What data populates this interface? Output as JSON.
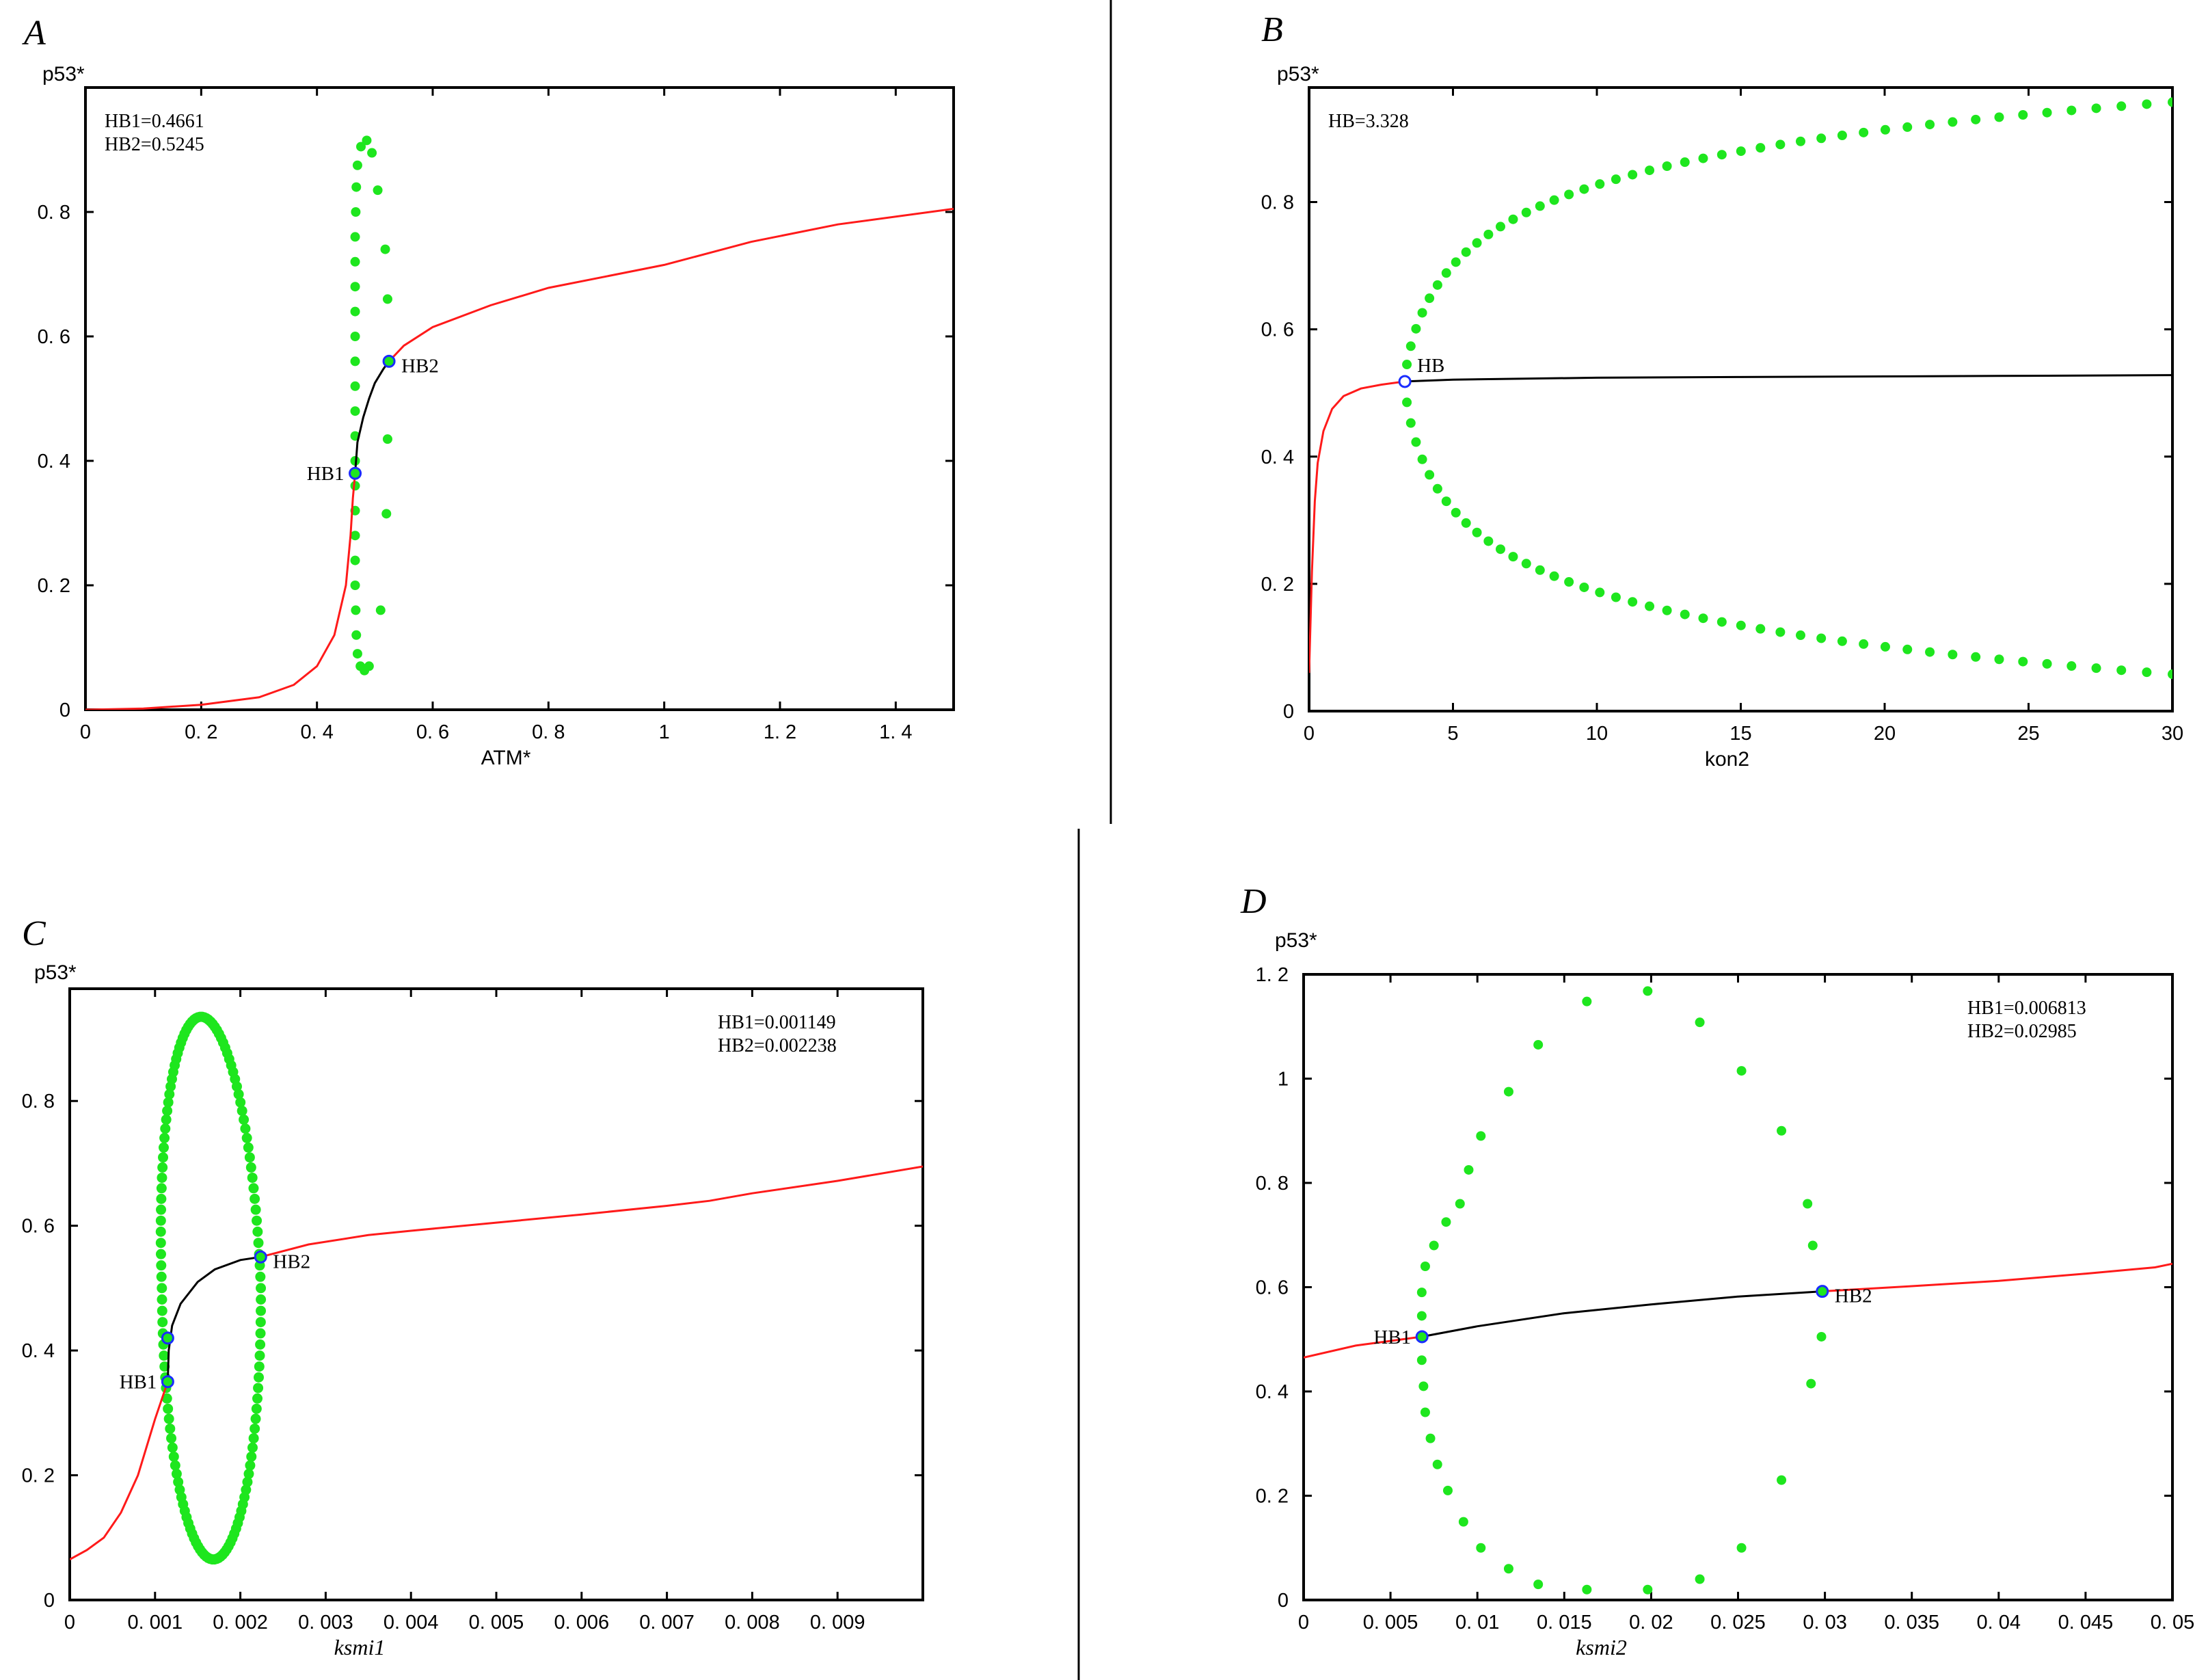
{
  "colors": {
    "stable": "#ff1a1a",
    "unstable": "#000000",
    "limit_cycle": "#1ee61e",
    "hopf_marker": "#1a2cff",
    "frame": "#000000"
  },
  "chart_data": [
    {
      "id": "A",
      "type": "line",
      "panel_label": "A",
      "ylabel": "p53*",
      "xlabel": "ATM*",
      "xlabel_italic": false,
      "xlim": [
        0,
        1.5
      ],
      "ylim": [
        0,
        1.0
      ],
      "xticks": [
        0,
        0.2,
        0.4,
        0.6,
        0.8,
        1,
        1.2,
        1.4
      ],
      "xtick_labels": [
        "0",
        "0. 2",
        "0. 4",
        "0. 6",
        "0. 8",
        "1",
        "1. 2",
        "1. 4"
      ],
      "yticks": [
        0,
        0.2,
        0.4,
        0.6,
        0.8
      ],
      "ytick_labels": [
        "0",
        "0. 2",
        "0. 4",
        "0. 6",
        "0. 8"
      ],
      "info_lines": [
        "HB1=0.4661",
        "HB2=0.5245"
      ],
      "info_pos": "top-left",
      "stable_branches": [
        [
          [
            0,
            0
          ],
          [
            0.1,
            0.002
          ],
          [
            0.2,
            0.008
          ],
          [
            0.3,
            0.02
          ],
          [
            0.36,
            0.04
          ],
          [
            0.4,
            0.07
          ],
          [
            0.43,
            0.12
          ],
          [
            0.45,
            0.2
          ],
          [
            0.458,
            0.28
          ],
          [
            0.462,
            0.34
          ],
          [
            0.466,
            0.38
          ]
        ],
        [
          [
            0.5245,
            0.56
          ],
          [
            0.55,
            0.585
          ],
          [
            0.6,
            0.615
          ],
          [
            0.7,
            0.65
          ],
          [
            0.8,
            0.678
          ],
          [
            1.0,
            0.715
          ],
          [
            1.15,
            0.752
          ],
          [
            1.3,
            0.78
          ],
          [
            1.5,
            0.805
          ]
        ]
      ],
      "unstable_branch": [
        [
          0.466,
          0.38
        ],
        [
          0.47,
          0.43
        ],
        [
          0.48,
          0.47
        ],
        [
          0.49,
          0.5
        ],
        [
          0.5,
          0.525
        ],
        [
          0.515,
          0.548
        ],
        [
          0.5245,
          0.56
        ]
      ],
      "cycle_points": [
        [
          0.476,
          0.905
        ],
        [
          0.486,
          0.915
        ],
        [
          0.495,
          0.895
        ],
        [
          0.505,
          0.835
        ],
        [
          0.47,
          0.875
        ],
        [
          0.468,
          0.84
        ],
        [
          0.467,
          0.8
        ],
        [
          0.466,
          0.76
        ],
        [
          0.466,
          0.72
        ],
        [
          0.466,
          0.68
        ],
        [
          0.466,
          0.64
        ],
        [
          0.466,
          0.6
        ],
        [
          0.466,
          0.56
        ],
        [
          0.466,
          0.52
        ],
        [
          0.466,
          0.48
        ],
        [
          0.466,
          0.44
        ],
        [
          0.466,
          0.4
        ],
        [
          0.466,
          0.36
        ],
        [
          0.466,
          0.32
        ],
        [
          0.466,
          0.28
        ],
        [
          0.466,
          0.24
        ],
        [
          0.466,
          0.2
        ],
        [
          0.467,
          0.16
        ],
        [
          0.468,
          0.12
        ],
        [
          0.47,
          0.09
        ],
        [
          0.475,
          0.07
        ],
        [
          0.482,
          0.063
        ],
        [
          0.49,
          0.07
        ],
        [
          0.51,
          0.16
        ],
        [
          0.52,
          0.315
        ],
        [
          0.522,
          0.435
        ],
        [
          0.522,
          0.66
        ],
        [
          0.518,
          0.74
        ]
      ],
      "hopf_points": [
        {
          "x": 0.466,
          "y": 0.38,
          "label": "HB1",
          "label_side": "left"
        },
        {
          "x": 0.5245,
          "y": 0.56,
          "label": "HB2",
          "label_side": "right"
        }
      ]
    },
    {
      "id": "B",
      "type": "line",
      "panel_label": "B",
      "ylabel": "p53*",
      "xlabel": "kon2",
      "xlabel_italic": false,
      "xlim": [
        0,
        30
      ],
      "ylim": [
        0,
        0.98
      ],
      "xticks": [
        0,
        5,
        10,
        15,
        20,
        25,
        30
      ],
      "xtick_labels": [
        "0",
        "5",
        "10",
        "15",
        "20",
        "25",
        "30"
      ],
      "yticks": [
        0,
        0.2,
        0.4,
        0.6,
        0.8
      ],
      "ytick_labels": [
        "0",
        "0. 2",
        "0. 4",
        "0. 6",
        "0. 8"
      ],
      "info_lines": [
        "HB=3.328"
      ],
      "info_pos": "top-left",
      "stable_branches": [
        [
          [
            0,
            0.06
          ],
          [
            0.1,
            0.22
          ],
          [
            0.2,
            0.33
          ],
          [
            0.3,
            0.39
          ],
          [
            0.5,
            0.44
          ],
          [
            0.8,
            0.475
          ],
          [
            1.2,
            0.495
          ],
          [
            1.8,
            0.507
          ],
          [
            2.5,
            0.513
          ],
          [
            3.328,
            0.518
          ]
        ]
      ],
      "unstable_branch": [
        [
          3.328,
          0.518
        ],
        [
          5,
          0.521
        ],
        [
          10,
          0.524
        ],
        [
          15,
          0.525
        ],
        [
          20,
          0.526
        ],
        [
          25,
          0.527
        ],
        [
          30,
          0.528
        ]
      ],
      "hopf_points": [
        {
          "x": 3.328,
          "y": 0.518,
          "label": "HB",
          "label_side": "right"
        }
      ]
    },
    {
      "id": "C",
      "type": "line",
      "panel_label": "C",
      "ylabel": "p53*",
      "xlabel": "ksmi1",
      "xlabel_italic": true,
      "xlim": [
        0,
        0.01
      ],
      "ylim": [
        0,
        0.98
      ],
      "xticks": [
        0,
        0.001,
        0.002,
        0.003,
        0.004,
        0.005,
        0.006,
        0.007,
        0.008,
        0.009
      ],
      "xtick_labels": [
        "0",
        "0. 001",
        "0. 002",
        "0. 003",
        "0. 004",
        "0. 005",
        "0. 006",
        "0. 007",
        "0. 008",
        "0. 009"
      ],
      "yticks": [
        0,
        0.2,
        0.4,
        0.6,
        0.8
      ],
      "ytick_labels": [
        "0",
        "0. 2",
        "0. 4",
        "0. 6",
        "0. 8"
      ],
      "info_lines": [
        "HB1=0.001149",
        "HB2=0.002238"
      ],
      "info_pos": "top-right",
      "stable_branches": [
        [
          [
            0,
            0.065
          ],
          [
            0.0002,
            0.08
          ],
          [
            0.0004,
            0.1
          ],
          [
            0.0006,
            0.14
          ],
          [
            0.0008,
            0.2
          ],
          [
            0.001,
            0.29
          ],
          [
            0.001149,
            0.35
          ]
        ],
        [
          [
            0.002238,
            0.55
          ],
          [
            0.0028,
            0.57
          ],
          [
            0.0035,
            0.585
          ],
          [
            0.004,
            0.592
          ],
          [
            0.005,
            0.605
          ],
          [
            0.006,
            0.618
          ],
          [
            0.007,
            0.632
          ],
          [
            0.0075,
            0.64
          ],
          [
            0.008,
            0.652
          ],
          [
            0.009,
            0.672
          ],
          [
            0.01,
            0.695
          ]
        ]
      ],
      "unstable_branch": [
        [
          0.001149,
          0.35
        ],
        [
          0.00116,
          0.4
        ],
        [
          0.0012,
          0.44
        ],
        [
          0.0013,
          0.475
        ],
        [
          0.0015,
          0.51
        ],
        [
          0.0017,
          0.53
        ],
        [
          0.002,
          0.545
        ],
        [
          0.002238,
          0.55
        ]
      ],
      "hopf_points": [
        {
          "x": 0.001149,
          "y": 0.35,
          "label": "HB1",
          "label_side": "left"
        },
        {
          "x": 0.001149,
          "y": 0.42,
          "label": "",
          "label_side": "none"
        },
        {
          "x": 0.002238,
          "y": 0.55,
          "label": "HB2",
          "label_side": "right"
        }
      ]
    },
    {
      "id": "D",
      "type": "line",
      "panel_label": "D",
      "ylabel": "p53*",
      "xlabel": "ksmi2",
      "xlabel_italic": true,
      "xlim": [
        0,
        0.05
      ],
      "ylim": [
        0,
        1.2
      ],
      "xticks": [
        0,
        0.005,
        0.01,
        0.015,
        0.02,
        0.025,
        0.03,
        0.035,
        0.04,
        0.045,
        0.05
      ],
      "xtick_labels": [
        "0",
        "0. 005",
        "0. 01",
        "0. 015",
        "0. 02",
        "0. 025",
        "0. 03",
        "0. 035",
        "0. 04",
        "0. 045",
        "0. 05"
      ],
      "yticks": [
        0,
        0.2,
        0.4,
        0.6,
        0.8,
        1,
        1.2
      ],
      "ytick_labels": [
        "0",
        "0. 2",
        "0. 4",
        "0. 6",
        "0. 8",
        "1",
        "1. 2"
      ],
      "info_lines": [
        "HB1=0.006813",
        "HB2=0.02985"
      ],
      "info_pos": "top-right",
      "stable_branches": [
        [
          [
            0,
            0.465
          ],
          [
            0.003,
            0.488
          ],
          [
            0.006813,
            0.505
          ]
        ],
        [
          [
            0.02985,
            0.592
          ],
          [
            0.035,
            0.602
          ],
          [
            0.04,
            0.612
          ],
          [
            0.045,
            0.626
          ],
          [
            0.049,
            0.638
          ],
          [
            0.05,
            0.645
          ]
        ]
      ],
      "unstable_branch": [
        [
          0.006813,
          0.505
        ],
        [
          0.01,
          0.525
        ],
        [
          0.015,
          0.55
        ],
        [
          0.02,
          0.567
        ],
        [
          0.025,
          0.582
        ],
        [
          0.02985,
          0.592
        ]
      ],
      "cycle_points": [
        [
          0.0068,
          0.59
        ],
        [
          0.007,
          0.64
        ],
        [
          0.0075,
          0.68
        ],
        [
          0.0082,
          0.725
        ],
        [
          0.009,
          0.76
        ],
        [
          0.0095,
          0.825
        ],
        [
          0.0102,
          0.89
        ],
        [
          0.0118,
          0.975
        ],
        [
          0.0135,
          1.065
        ],
        [
          0.0163,
          1.148
        ],
        [
          0.0198,
          1.168
        ],
        [
          0.0228,
          1.108
        ],
        [
          0.0252,
          1.015
        ],
        [
          0.0275,
          0.9
        ],
        [
          0.029,
          0.76
        ],
        [
          0.0293,
          0.68
        ],
        [
          0.0298,
          0.505
        ],
        [
          0.0292,
          0.415
        ],
        [
          0.0275,
          0.23
        ],
        [
          0.0252,
          0.1
        ],
        [
          0.0228,
          0.04
        ],
        [
          0.0198,
          0.02
        ],
        [
          0.0163,
          0.02
        ],
        [
          0.0135,
          0.03
        ],
        [
          0.0118,
          0.06
        ],
        [
          0.0102,
          0.1
        ],
        [
          0.0092,
          0.15
        ],
        [
          0.0083,
          0.21
        ],
        [
          0.0077,
          0.26
        ],
        [
          0.0073,
          0.31
        ],
        [
          0.007,
          0.36
        ],
        [
          0.0069,
          0.41
        ],
        [
          0.0068,
          0.46
        ],
        [
          0.0068,
          0.545
        ]
      ],
      "hopf_points": [
        {
          "x": 0.006813,
          "y": 0.505,
          "label": "HB1",
          "label_side": "left"
        },
        {
          "x": 0.02985,
          "y": 0.592,
          "label": "HB2",
          "label_side": "right"
        }
      ]
    }
  ]
}
